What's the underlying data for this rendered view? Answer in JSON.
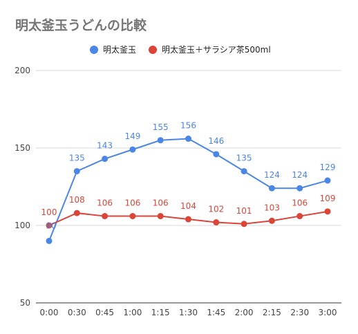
{
  "chart_data": {
    "type": "line",
    "title": "明太釜玉うどんの比較",
    "xlabel": "",
    "ylabel": "",
    "categories": [
      "0:00",
      "0:30",
      "0:45",
      "1:00",
      "1:15",
      "1:30",
      "1:45",
      "2:00",
      "2:15",
      "2:30",
      "3:00"
    ],
    "ylim": [
      50,
      200
    ],
    "yticks": [
      50,
      100,
      150,
      200
    ],
    "grid": true,
    "legend_position": "top",
    "series": [
      {
        "name": "明太釜玉",
        "color": "#4a86e8",
        "values": [
          90,
          135,
          143,
          149,
          155,
          156,
          146,
          135,
          124,
          124,
          129
        ]
      },
      {
        "name": "明太釜玉＋サラシア茶500ml",
        "color": "#db4437",
        "values": [
          100,
          108,
          106,
          106,
          106,
          104,
          102,
          101,
          103,
          106,
          109
        ]
      }
    ]
  }
}
